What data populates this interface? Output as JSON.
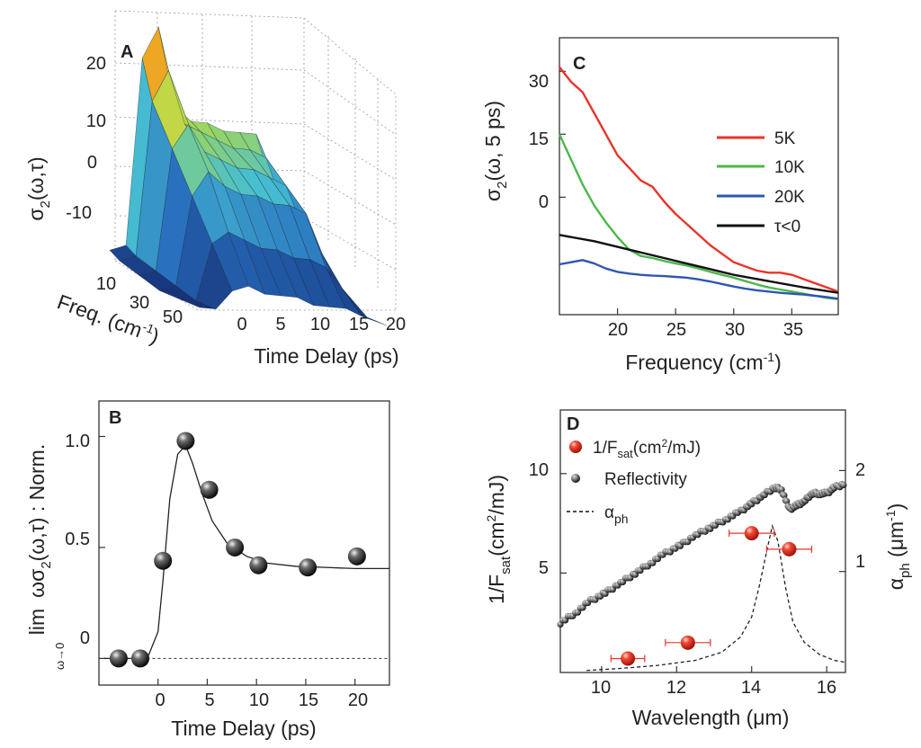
{
  "panels": {
    "A": {
      "label": "A",
      "ylabel_main": "σ",
      "ylabel_sub": "2",
      "ylabel_rest": "(ω,τ)",
      "xlabel": "Time Delay (ps)",
      "flabel_main": "Freq. (cm",
      "flabel_sup": "-1",
      "flabel_end": ")",
      "zticks": [
        "20",
        "10",
        "0",
        "-10"
      ],
      "tticks": [
        "0",
        "5",
        "10",
        "15",
        "20"
      ],
      "fticks": [
        "10",
        "30",
        "50"
      ]
    },
    "B": {
      "label": "B",
      "ylabel_lim": "lim",
      "ylabel_sub": "ω→0",
      "ylabel_expr": "ωσ",
      "ylabel_expr_sub": "2",
      "ylabel_expr_end": "(ω,τ) : Norm.",
      "xlabel": "Time Delay (ps)",
      "yticks": [
        "0",
        "0.5",
        "1.0"
      ],
      "xticks": [
        "0",
        "5",
        "10",
        "15",
        "20"
      ]
    },
    "C": {
      "label": "C",
      "ylabel_main": "σ",
      "ylabel_sub": "2",
      "ylabel_rest": "(ω, 5 ps)",
      "xlabel_main": "Frequency (cm",
      "xlabel_sup": "-1",
      "xlabel_end": ")",
      "yticks": [
        "30",
        "15",
        "0"
      ],
      "xticks": [
        "20",
        "25",
        "30",
        "35"
      ]
    },
    "D": {
      "label": "D",
      "ylabel_left_main": "1/F",
      "ylabel_left_sub": "sat",
      "ylabel_left_mid": "(cm",
      "ylabel_left_sup": "2",
      "ylabel_left_end": "/mJ)",
      "ylabel_right_main": "α",
      "ylabel_right_sub": "ph",
      "ylabel_right_mid": " (μm",
      "ylabel_right_sup": "-1",
      "ylabel_right_end": ")",
      "xlabel": "Wavelength (μm)",
      "yticks_left": [
        "5",
        "10"
      ],
      "yticks_right": [
        "1",
        "2"
      ],
      "xticks": [
        "10",
        "12",
        "14",
        "16"
      ],
      "legend_fsat_main": "1/F",
      "legend_fsat_sub": "sat",
      "legend_fsat_mid": "(cm",
      "legend_fsat_sup": "2",
      "legend_fsat_end": "/mJ)",
      "legend_refl": "Reflectivity",
      "legend_alpha_main": "α",
      "legend_alpha_sub": "ph"
    }
  },
  "colors": {
    "red": "#e8342a",
    "green": "#4cb84a",
    "blue": "#2f56b0",
    "black": "#111111"
  },
  "chart_data": [
    {
      "panel": "A",
      "type": "surface",
      "zlabel": "σ2(ω,τ)",
      "xlabel": "Time Delay (ps)",
      "ylabel": "Freq. (cm-1)",
      "x": [
        -3,
        -1,
        1,
        3,
        5,
        7,
        9,
        11,
        13,
        15,
        17,
        20
      ],
      "freq": [
        5,
        10,
        20,
        30,
        40,
        50
      ],
      "z_rows": [
        [
          -10,
          -9,
          20,
          25,
          13,
          11,
          11,
          10,
          10,
          10,
          2,
          -13
        ],
        [
          -11,
          -10,
          14,
          19,
          11,
          10,
          9,
          8,
          8,
          7,
          0,
          -13
        ],
        [
          -12,
          -11,
          8,
          12,
          8,
          7,
          6,
          6,
          5,
          4,
          -2,
          -13
        ],
        [
          -13,
          -12,
          2,
          6,
          4,
          3,
          3,
          2,
          2,
          1,
          -5,
          -13
        ],
        [
          -13,
          -13,
          -4,
          -2,
          -3,
          -4,
          -4,
          -5,
          -5,
          -6,
          -9,
          -13
        ],
        [
          -13,
          -13,
          -10,
          -9,
          -10,
          -10,
          -10,
          -11,
          -11,
          -11,
          -12,
          -13
        ]
      ],
      "zlim": [
        -13,
        25
      ]
    },
    {
      "panel": "B",
      "type": "scatter",
      "xlabel": "Time Delay (ps)",
      "ylabel": "lim ωσ2(ω,τ) : Norm.",
      "points": [
        [
          -4,
          0.0
        ],
        [
          -1.8,
          0.0
        ],
        [
          0.5,
          0.44
        ],
        [
          2.8,
          0.98
        ],
        [
          5.2,
          0.76
        ],
        [
          7.8,
          0.5
        ],
        [
          10.2,
          0.42
        ],
        [
          15.2,
          0.41
        ],
        [
          20.2,
          0.46
        ]
      ],
      "fit": [
        [
          -5.5,
          0.0
        ],
        [
          -2,
          0.0
        ],
        [
          -1,
          0.01
        ],
        [
          0,
          0.12
        ],
        [
          0.5,
          0.35
        ],
        [
          1.2,
          0.72
        ],
        [
          2,
          0.92
        ],
        [
          2.8,
          0.96
        ],
        [
          3.5,
          0.88
        ],
        [
          4.5,
          0.74
        ],
        [
          5.5,
          0.62
        ],
        [
          7,
          0.52
        ],
        [
          9,
          0.46
        ],
        [
          11,
          0.43
        ],
        [
          14,
          0.415
        ],
        [
          17,
          0.41
        ],
        [
          20,
          0.405
        ],
        [
          23.5,
          0.405
        ]
      ],
      "baseline": 0.0,
      "xlim": [
        -6,
        23.5
      ],
      "ylim": [
        -0.12,
        1.16
      ]
    },
    {
      "panel": "C",
      "type": "line",
      "xlabel": "Frequency (cm-1)",
      "ylabel": "σ2(ω, 5 ps)",
      "xlim": [
        15,
        39
      ],
      "ylim": [
        -28,
        38
      ],
      "series": [
        {
          "name": "5K",
          "color": "#e8342a",
          "x": [
            15,
            16,
            17,
            18,
            19,
            20,
            21,
            22,
            23,
            24,
            25,
            26,
            27,
            28,
            29,
            30,
            31,
            32,
            33,
            34,
            35,
            36,
            37,
            38,
            39
          ],
          "y": [
            31,
            27.5,
            25,
            20,
            15,
            10,
            7,
            4,
            2.5,
            -1,
            -4,
            -6.5,
            -9,
            -11.5,
            -13.5,
            -15.5,
            -16.5,
            -17.5,
            -18,
            -18,
            -18.5,
            -19.5,
            -20.5,
            -21.5,
            -22.5
          ]
        },
        {
          "name": "10K",
          "color": "#4cb84a",
          "x": [
            15,
            16,
            17,
            18,
            19,
            20,
            21,
            22,
            23,
            24,
            25,
            26,
            27,
            28,
            29,
            30,
            31,
            32,
            33,
            34,
            35,
            36,
            37,
            38,
            39
          ],
          "y": [
            15,
            9,
            3,
            -2,
            -6,
            -9.5,
            -12.5,
            -14,
            -14.5,
            -15.2,
            -15.8,
            -16.3,
            -17,
            -17.8,
            -18.5,
            -19.2,
            -20,
            -20.8,
            -21.5,
            -22,
            -22.5,
            -23,
            -23.5,
            -24,
            -24.3
          ]
        },
        {
          "name": "20K",
          "color": "#2f56b0",
          "x": [
            15,
            16,
            17,
            18,
            19,
            20,
            21,
            22,
            23,
            24,
            25,
            26,
            27,
            28,
            29,
            30,
            31,
            32,
            33,
            34,
            35,
            36,
            37,
            38,
            39
          ],
          "y": [
            -16,
            -15.5,
            -15,
            -15.8,
            -17,
            -17.8,
            -18.2,
            -18.5,
            -18.7,
            -18.8,
            -19,
            -19.2,
            -19.6,
            -20.1,
            -20.7,
            -21.3,
            -21.8,
            -22.2,
            -22.5,
            -22.8,
            -23,
            -23.2,
            -23.5,
            -23.8,
            -24.2
          ]
        },
        {
          "name": "τ<0",
          "color": "#111111",
          "x": [
            15,
            18,
            21,
            24,
            27,
            30,
            33,
            36,
            39
          ],
          "y": [
            -9,
            -10.5,
            -12.5,
            -14.5,
            -16.5,
            -18.5,
            -20,
            -21.5,
            -22.8
          ]
        }
      ]
    },
    {
      "panel": "D",
      "type": "scatter+line",
      "xlabel": "Wavelength (μm)",
      "ylabel_left": "1/Fsat(cm2/mJ)",
      "ylabel_right": "αph (μm-1)",
      "xlim": [
        8.9,
        16.5
      ],
      "ylim_left": [
        0,
        13.2
      ],
      "ylim_right": [
        0,
        2.6
      ],
      "series": [
        {
          "name": "1/Fsat(cm2/mJ)",
          "axis": "left",
          "points": [
            [
              10.7,
              0.7,
              0.45,
              0.0
            ],
            [
              12.3,
              1.5,
              0.6,
              0.0
            ],
            [
              14.0,
              7.0,
              0.6,
              0.0
            ],
            [
              15.0,
              6.2,
              0.6,
              0.0
            ]
          ],
          "point_fields": [
            "x",
            "y",
            "x_error",
            "y_error"
          ]
        },
        {
          "name": "Reflectivity",
          "axis": "left",
          "x": [
            8.9,
            9.3,
            9.7,
            10.1,
            10.5,
            10.9,
            11.3,
            11.7,
            12.1,
            12.5,
            12.9,
            13.3,
            13.7,
            14.0,
            14.3,
            14.6,
            14.8,
            15.0,
            15.2,
            15.4,
            15.6,
            15.8,
            16.0,
            16.2,
            16.5
          ],
          "y": [
            2.5,
            3.0,
            3.6,
            4.0,
            4.5,
            5.0,
            5.5,
            6.0,
            6.4,
            6.9,
            7.3,
            7.7,
            8.1,
            8.5,
            8.9,
            9.3,
            9.2,
            8.2,
            8.4,
            8.6,
            9.0,
            9.0,
            9.0,
            9.3,
            9.5
          ]
        },
        {
          "name": "αph",
          "axis": "right",
          "dashed": true,
          "x": [
            9.6,
            10.5,
            11.5,
            12.5,
            13.2,
            13.7,
            14.0,
            14.2,
            14.4,
            14.55,
            14.7,
            14.9,
            15.1,
            15.4,
            15.8,
            16.2,
            16.5
          ],
          "y": [
            0.02,
            0.04,
            0.07,
            0.12,
            0.2,
            0.35,
            0.55,
            0.85,
            1.2,
            1.45,
            1.3,
            0.85,
            0.5,
            0.3,
            0.18,
            0.12,
            0.1
          ]
        }
      ]
    }
  ]
}
